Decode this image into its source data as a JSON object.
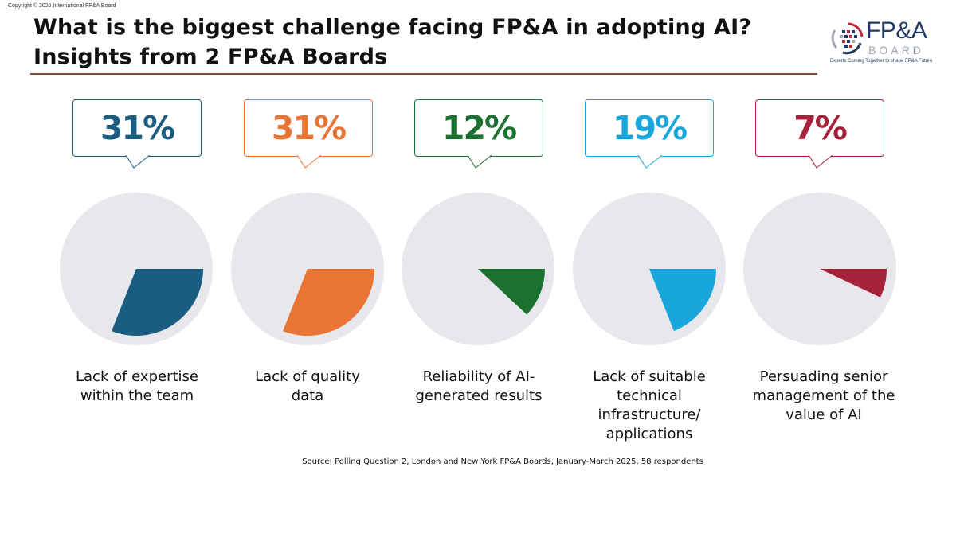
{
  "copyright": "Copyright © 2025 International FP&A Board",
  "title_line1": "What is the biggest challenge facing FP&A in adopting AI?",
  "title_line2": "Insights from 2 FP&A Boards",
  "logo": {
    "fp": "FP&A",
    "board": "BOARD",
    "tagline": "Experts Coming Together to shape FP&A Future",
    "colors": {
      "navy": "#1f3b63",
      "red": "#c0293b",
      "grey": "#9aa6b7"
    }
  },
  "source": "Source: Polling Question 2, London and New York FP&A Boards, January-March 2025, 58 respondents",
  "chart_data": {
    "type": "pie",
    "pie_background": "#e8e8ec",
    "items": [
      {
        "value": 31,
        "value_label": "31%",
        "label": "Lack of expertise within the team",
        "label_lines": [
          "Lack of expertise",
          "within the team"
        ],
        "color": "#1a5d80"
      },
      {
        "value": 31,
        "value_label": "31%",
        "label": "Lack of quality data",
        "label_lines": [
          "Lack of quality",
          "data"
        ],
        "color": "#ea7434"
      },
      {
        "value": 12,
        "value_label": "12%",
        "label": "Reliability of AI-generated results",
        "label_lines": [
          "Reliability of AI-",
          "generated results"
        ],
        "color": "#1b7130"
      },
      {
        "value": 19,
        "value_label": "19%",
        "label": "Lack of suitable technical infrastructure/ applications",
        "label_lines": [
          "Lack of suitable",
          "technical",
          "infrastructure/",
          "applications"
        ],
        "color": "#19a6dc"
      },
      {
        "value": 7,
        "value_label": "7%",
        "label": "Persuading senior management of the value of AI",
        "label_lines": [
          "Persuading senior",
          "management of the",
          "value of AI"
        ],
        "color": "#a6213a"
      }
    ]
  }
}
